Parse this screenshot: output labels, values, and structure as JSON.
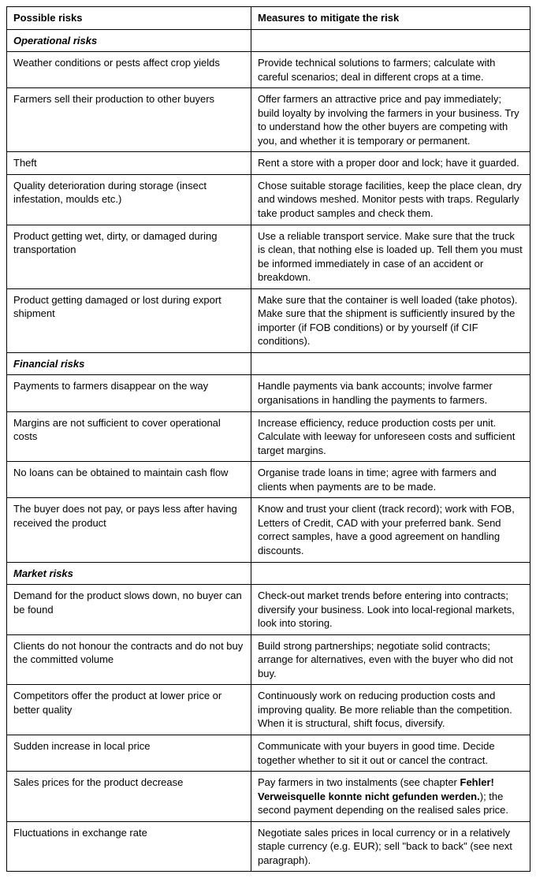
{
  "table": {
    "headers": {
      "risks": "Possible risks",
      "measures": "Measures to mitigate the risk"
    },
    "sections": [
      {
        "title": "Operational risks",
        "rows": [
          {
            "risk": "Weather conditions or pests affect crop yields",
            "measure": "Provide technical solutions to farmers; calculate with careful scenarios; deal in different crops at a time."
          },
          {
            "risk": "Farmers sell their production to other buyers",
            "measure": "Offer farmers an attractive price and pay immediately; build loyalty by involving the farmers in your business. Try to understand how the other buyers are competing with you, and whether it is temporary or permanent."
          },
          {
            "risk": "Theft",
            "measure": "Rent a store with a proper door and lock; have it guarded."
          },
          {
            "risk": "Quality deterioration during storage (insect infestation, moulds etc.)",
            "measure": "Chose suitable storage facilities, keep the place clean, dry and windows meshed. Monitor pests with traps. Regularly take product samples and check them."
          },
          {
            "risk": "Product getting wet, dirty, or damaged during transportation",
            "measure": "Use a reliable transport service. Make sure that the truck is clean, that nothing else is loaded up. Tell them you must be informed immediately in case of an accident or breakdown."
          },
          {
            "risk": "Product getting damaged or lost during export shipment",
            "measure": "Make sure that the container is well loaded (take photos). Make sure that the shipment is sufficiently insured by the importer (if FOB conditions) or by yourself (if CIF conditions)."
          }
        ]
      },
      {
        "title": "Financial risks",
        "rows": [
          {
            "risk": "Payments to farmers disappear on the way",
            "measure": "Handle payments via bank accounts; involve farmer organisations in handling the payments to farmers."
          },
          {
            "risk": "Margins are not sufficient to cover operational costs",
            "measure": "Increase efficiency, reduce production costs per unit. Calculate with leeway for unforeseen costs and sufficient target margins."
          },
          {
            "risk": "No loans can be obtained to maintain cash flow",
            "measure": "Organise trade loans in time; agree with farmers and clients when payments are to be made."
          },
          {
            "risk": "The buyer does not pay, or pays less after having received the product",
            "measure": "Know and trust your client (track record); work with FOB, Letters of Credit, CAD with your preferred bank. Send correct samples, have a good agreement on handling discounts."
          }
        ]
      },
      {
        "title": "Market risks",
        "rows": [
          {
            "risk": "Demand for the product slows down, no buyer can be found",
            "measure": "Check-out market trends before entering into contracts; diversify your business. Look into local-regional markets, look into storing."
          },
          {
            "risk": "Clients do not honour the contracts and do not buy the committed volume",
            "measure": "Build strong partnerships; negotiate solid contracts; arrange for alternatives, even with the buyer who did not buy."
          },
          {
            "risk": "Competitors offer the product at lower price or better quality",
            "measure": "Continuously work on reducing production costs and improving quality. Be more reliable than the competition. When it is structural, shift focus, diversify."
          },
          {
            "risk": "Sudden increase in local price",
            "measure": "Communicate with your buyers in good time. Decide together whether to sit it out or cancel the contract."
          },
          {
            "risk": "Sales prices for the product decrease",
            "measure_before": "Pay farmers in two instalments (see chapter ",
            "measure_bold": "Fehler! Verweisquelle konnte nicht gefunden werden.",
            "measure_after": "); the second payment depending on the realised sales price."
          },
          {
            "risk": "Fluctuations in exchange rate",
            "measure": "Negotiate sales prices in local currency or in a relatively staple currency (e.g. EUR); sell \"back to back\" (see next paragraph)."
          }
        ]
      }
    ]
  }
}
